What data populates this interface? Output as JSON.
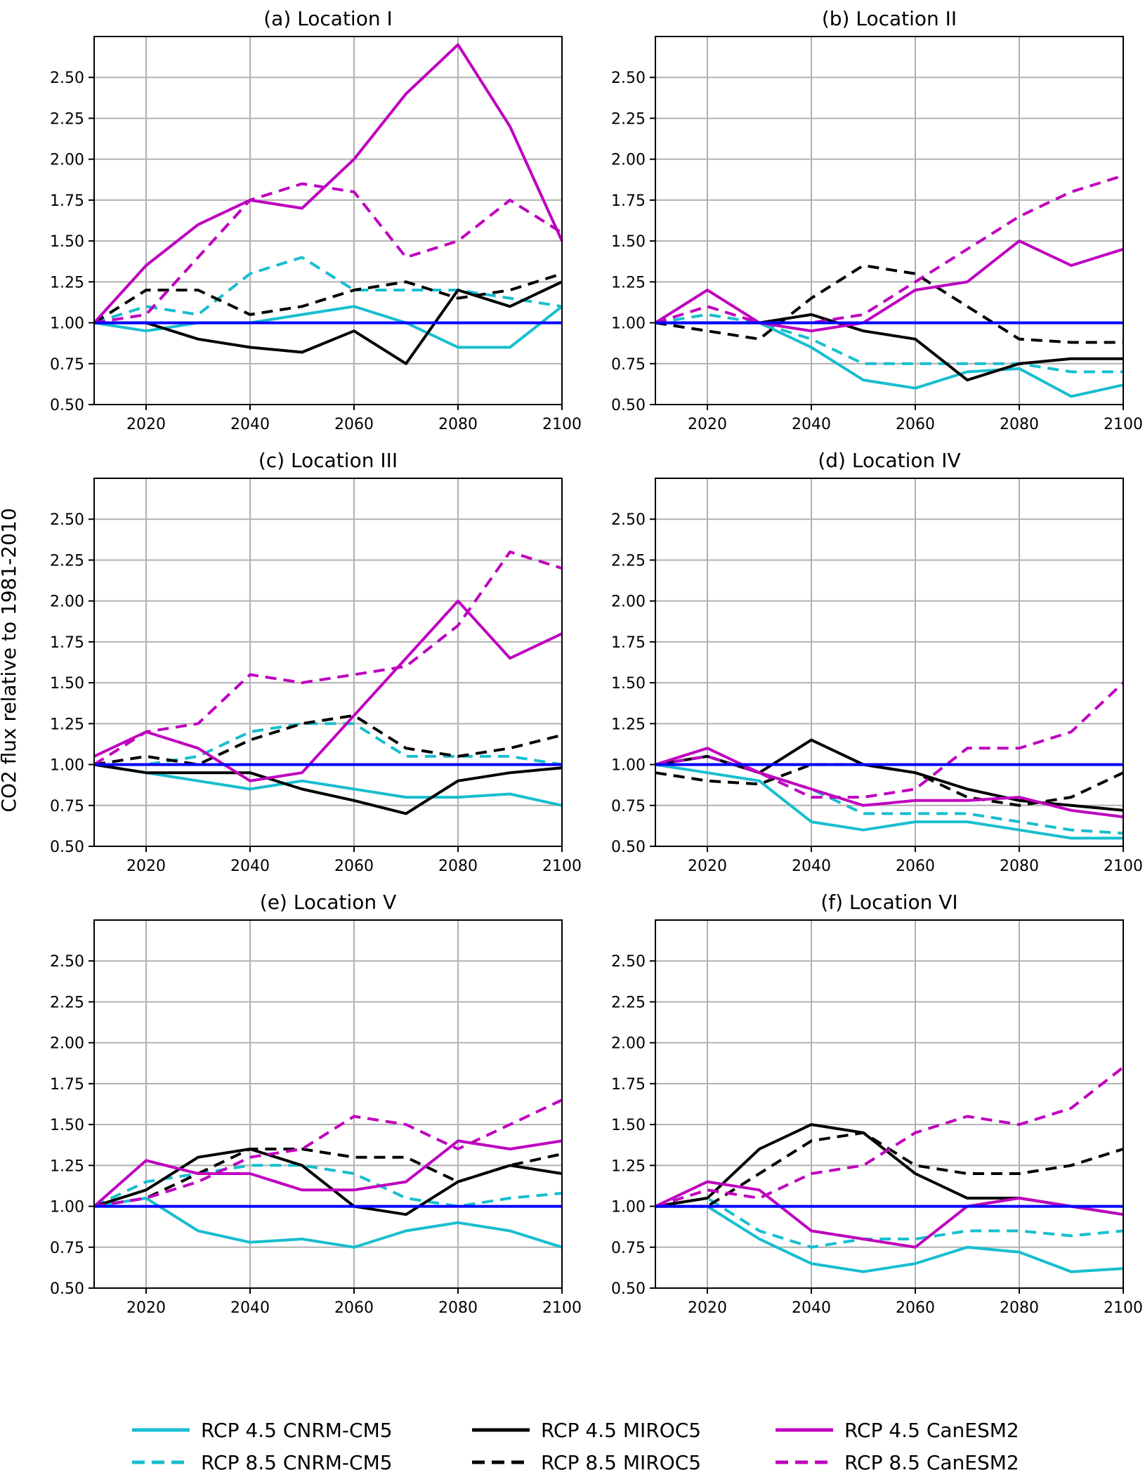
{
  "figure": {
    "ylabel": "CO2 flux relative to 1981-2010"
  },
  "axes": {
    "xlim": [
      2010,
      2100
    ],
    "ylim": [
      0.5,
      2.75
    ],
    "xticks": [
      2020,
      2040,
      2060,
      2080,
      2100
    ],
    "yticks": [
      0.5,
      0.75,
      1.0,
      1.25,
      1.5,
      1.75,
      2.0,
      2.25,
      2.5
    ],
    "grid": true
  },
  "colors": {
    "cnrm": "#17becf",
    "miroc": "#000000",
    "canesm": "#bf00bf",
    "baseline": "#0000ff"
  },
  "legend": {
    "placement": "bottom-center",
    "entries": [
      {
        "label": "RCP 4.5 CNRM-CM5",
        "color": "#17becf",
        "style": "solid"
      },
      {
        "label": "RCP 4.5 MIROC5",
        "color": "#000000",
        "style": "solid"
      },
      {
        "label": "RCP 4.5 CanESM2",
        "color": "#bf00bf",
        "style": "solid"
      },
      {
        "label": "RCP 8.5 CNRM-CM5",
        "color": "#17becf",
        "style": "dashed"
      },
      {
        "label": "RCP 8.5 MIROC5",
        "color": "#000000",
        "style": "dashed"
      },
      {
        "label": "RCP 8.5 CanESM2",
        "color": "#bf00bf",
        "style": "dashed"
      }
    ]
  },
  "chart_data": [
    {
      "type": "line",
      "title": "(a) Location I",
      "x": [
        2010,
        2020,
        2030,
        2040,
        2050,
        2060,
        2070,
        2080,
        2090,
        2100
      ],
      "series": [
        {
          "name": "RCP 4.5 CNRM-CM5",
          "values": [
            1.0,
            0.95,
            1.0,
            1.0,
            1.05,
            1.1,
            1.0,
            0.85,
            0.85,
            1.1
          ]
        },
        {
          "name": "RCP 8.5 CNRM-CM5",
          "values": [
            1.0,
            1.1,
            1.05,
            1.3,
            1.4,
            1.2,
            1.2,
            1.2,
            1.15,
            1.1
          ]
        },
        {
          "name": "RCP 4.5 MIROC5",
          "values": [
            1.0,
            1.0,
            0.9,
            0.85,
            0.82,
            0.95,
            0.75,
            1.2,
            1.1,
            1.25
          ]
        },
        {
          "name": "RCP 8.5 MIROC5",
          "values": [
            1.0,
            1.2,
            1.2,
            1.05,
            1.1,
            1.2,
            1.25,
            1.15,
            1.2,
            1.3
          ]
        },
        {
          "name": "RCP 4.5 CanESM2",
          "values": [
            1.0,
            1.35,
            1.6,
            1.75,
            1.7,
            2.0,
            2.4,
            2.7,
            2.2,
            1.5
          ]
        },
        {
          "name": "RCP 8.5 CanESM2",
          "values": [
            1.0,
            1.05,
            1.4,
            1.75,
            1.85,
            1.8,
            1.4,
            1.5,
            1.75,
            1.55
          ]
        },
        {
          "name": "",
          "values": [
            1.0,
            1.0,
            1.0,
            1.0,
            1.0,
            1.0,
            1.0,
            1.0,
            1.0,
            1.0
          ]
        }
      ]
    },
    {
      "type": "line",
      "title": "(b) Location II",
      "x": [
        2010,
        2020,
        2030,
        2040,
        2050,
        2060,
        2070,
        2080,
        2090,
        2100
      ],
      "series": [
        {
          "name": "RCP 4.5 CNRM-CM5",
          "values": [
            1.0,
            1.0,
            1.0,
            0.85,
            0.65,
            0.6,
            0.7,
            0.72,
            0.55,
            0.62
          ]
        },
        {
          "name": "RCP 8.5 CNRM-CM5",
          "values": [
            1.0,
            1.05,
            1.0,
            0.9,
            0.75,
            0.75,
            0.75,
            0.75,
            0.7,
            0.7
          ]
        },
        {
          "name": "RCP 4.5 MIROC5",
          "values": [
            1.0,
            1.0,
            1.0,
            1.05,
            0.95,
            0.9,
            0.65,
            0.75,
            0.78,
            0.78
          ]
        },
        {
          "name": "RCP 8.5 MIROC5",
          "values": [
            1.0,
            0.95,
            0.9,
            1.15,
            1.35,
            1.3,
            1.1,
            0.9,
            0.88,
            0.88
          ]
        },
        {
          "name": "RCP 4.5 CanESM2",
          "values": [
            1.0,
            1.2,
            1.0,
            0.95,
            1.0,
            1.2,
            1.25,
            1.5,
            1.35,
            1.45
          ]
        },
        {
          "name": "RCP 8.5 CanESM2",
          "values": [
            1.0,
            1.1,
            1.0,
            1.0,
            1.05,
            1.25,
            1.45,
            1.65,
            1.8,
            1.9
          ]
        },
        {
          "name": "",
          "values": [
            1.0,
            1.0,
            1.0,
            1.0,
            1.0,
            1.0,
            1.0,
            1.0,
            1.0,
            1.0
          ]
        }
      ]
    },
    {
      "type": "line",
      "title": "(c) Location III",
      "x": [
        2010,
        2020,
        2030,
        2040,
        2050,
        2060,
        2070,
        2080,
        2090,
        2100
      ],
      "series": [
        {
          "name": "RCP 4.5 CNRM-CM5",
          "values": [
            1.0,
            0.95,
            0.9,
            0.85,
            0.9,
            0.85,
            0.8,
            0.8,
            0.82,
            0.75
          ]
        },
        {
          "name": "RCP 8.5 CNRM-CM5",
          "values": [
            1.0,
            1.0,
            1.05,
            1.2,
            1.25,
            1.25,
            1.05,
            1.05,
            1.05,
            1.0
          ]
        },
        {
          "name": "RCP 4.5 MIROC5",
          "values": [
            1.0,
            0.95,
            0.95,
            0.95,
            0.85,
            0.78,
            0.7,
            0.9,
            0.95,
            0.98
          ]
        },
        {
          "name": "RCP 8.5 MIROC5",
          "values": [
            1.0,
            1.05,
            1.0,
            1.15,
            1.25,
            1.3,
            1.1,
            1.05,
            1.1,
            1.18
          ]
        },
        {
          "name": "RCP 4.5 CanESM2",
          "values": [
            1.05,
            1.2,
            1.1,
            0.9,
            0.95,
            1.3,
            1.65,
            2.0,
            1.65,
            1.8
          ]
        },
        {
          "name": "RCP 8.5 CanESM2",
          "values": [
            1.0,
            1.2,
            1.25,
            1.55,
            1.5,
            1.55,
            1.6,
            1.85,
            2.3,
            2.2
          ]
        },
        {
          "name": "",
          "values": [
            1.0,
            1.0,
            1.0,
            1.0,
            1.0,
            1.0,
            1.0,
            1.0,
            1.0,
            1.0
          ]
        }
      ]
    },
    {
      "type": "line",
      "title": "(d) Location IV",
      "x": [
        2010,
        2020,
        2030,
        2040,
        2050,
        2060,
        2070,
        2080,
        2090,
        2100
      ],
      "series": [
        {
          "name": "RCP 4.5 CNRM-CM5",
          "values": [
            1.0,
            0.95,
            0.9,
            0.65,
            0.6,
            0.65,
            0.65,
            0.6,
            0.55,
            0.55
          ]
        },
        {
          "name": "RCP 8.5 CNRM-CM5",
          "values": [
            1.0,
            1.05,
            0.95,
            0.85,
            0.7,
            0.7,
            0.7,
            0.65,
            0.6,
            0.58
          ]
        },
        {
          "name": "RCP 4.5 MIROC5",
          "values": [
            1.0,
            1.05,
            0.95,
            1.15,
            1.0,
            0.95,
            0.85,
            0.78,
            0.75,
            0.72
          ]
        },
        {
          "name": "RCP 8.5 MIROC5",
          "values": [
            0.95,
            0.9,
            0.88,
            1.0,
            1.0,
            0.95,
            0.8,
            0.75,
            0.8,
            0.95
          ]
        },
        {
          "name": "RCP 4.5 CanESM2",
          "values": [
            1.0,
            1.1,
            0.95,
            0.85,
            0.75,
            0.78,
            0.78,
            0.8,
            0.72,
            0.68
          ]
        },
        {
          "name": "RCP 8.5 CanESM2",
          "values": [
            1.0,
            1.05,
            0.95,
            0.8,
            0.8,
            0.85,
            1.1,
            1.1,
            1.2,
            1.5
          ]
        },
        {
          "name": "",
          "values": [
            1.0,
            1.0,
            1.0,
            1.0,
            1.0,
            1.0,
            1.0,
            1.0,
            1.0,
            1.0
          ]
        }
      ]
    },
    {
      "type": "line",
      "title": "(e) Location V",
      "x": [
        2010,
        2020,
        2030,
        2040,
        2050,
        2060,
        2070,
        2080,
        2090,
        2100
      ],
      "series": [
        {
          "name": "RCP 4.5 CNRM-CM5",
          "values": [
            1.0,
            1.05,
            0.85,
            0.78,
            0.8,
            0.75,
            0.85,
            0.9,
            0.85,
            0.75
          ]
        },
        {
          "name": "RCP 8.5 CNRM-CM5",
          "values": [
            1.0,
            1.15,
            1.2,
            1.25,
            1.25,
            1.2,
            1.05,
            1.0,
            1.05,
            1.08
          ]
        },
        {
          "name": "RCP 4.5 MIROC5",
          "values": [
            1.0,
            1.1,
            1.3,
            1.35,
            1.25,
            1.0,
            0.95,
            1.15,
            1.25,
            1.2
          ]
        },
        {
          "name": "RCP 8.5 MIROC5",
          "values": [
            1.0,
            1.05,
            1.2,
            1.35,
            1.35,
            1.3,
            1.3,
            1.15,
            1.25,
            1.32
          ]
        },
        {
          "name": "RCP 4.5 CanESM2",
          "values": [
            1.0,
            1.28,
            1.2,
            1.2,
            1.1,
            1.1,
            1.15,
            1.4,
            1.35,
            1.4
          ]
        },
        {
          "name": "RCP 8.5 CanESM2",
          "values": [
            1.0,
            1.05,
            1.15,
            1.3,
            1.35,
            1.55,
            1.5,
            1.35,
            1.5,
            1.65
          ]
        },
        {
          "name": "",
          "values": [
            1.0,
            1.0,
            1.0,
            1.0,
            1.0,
            1.0,
            1.0,
            1.0,
            1.0,
            1.0
          ]
        }
      ]
    },
    {
      "type": "line",
      "title": "(f) Location VI",
      "x": [
        2010,
        2020,
        2030,
        2040,
        2050,
        2060,
        2070,
        2080,
        2090,
        2100
      ],
      "series": [
        {
          "name": "RCP 4.5 CNRM-CM5",
          "values": [
            1.0,
            1.0,
            0.8,
            0.65,
            0.6,
            0.65,
            0.75,
            0.72,
            0.6,
            0.62
          ]
        },
        {
          "name": "RCP 8.5 CNRM-CM5",
          "values": [
            1.0,
            1.05,
            0.85,
            0.75,
            0.8,
            0.8,
            0.85,
            0.85,
            0.82,
            0.85
          ]
        },
        {
          "name": "RCP 4.5 MIROC5",
          "values": [
            1.0,
            1.05,
            1.35,
            1.5,
            1.45,
            1.2,
            1.05,
            1.05,
            1.0,
            0.95
          ]
        },
        {
          "name": "RCP 8.5 MIROC5",
          "values": [
            1.0,
            1.0,
            1.2,
            1.4,
            1.45,
            1.25,
            1.2,
            1.2,
            1.25,
            1.35
          ]
        },
        {
          "name": "RCP 4.5 CanESM2",
          "values": [
            1.0,
            1.15,
            1.1,
            0.85,
            0.8,
            0.75,
            1.0,
            1.05,
            1.0,
            0.95
          ]
        },
        {
          "name": "RCP 8.5 CanESM2",
          "values": [
            1.0,
            1.1,
            1.05,
            1.2,
            1.25,
            1.45,
            1.55,
            1.5,
            1.6,
            1.85
          ]
        },
        {
          "name": "",
          "values": [
            1.0,
            1.0,
            1.0,
            1.0,
            1.0,
            1.0,
            1.0,
            1.0,
            1.0,
            1.0
          ]
        }
      ]
    }
  ]
}
